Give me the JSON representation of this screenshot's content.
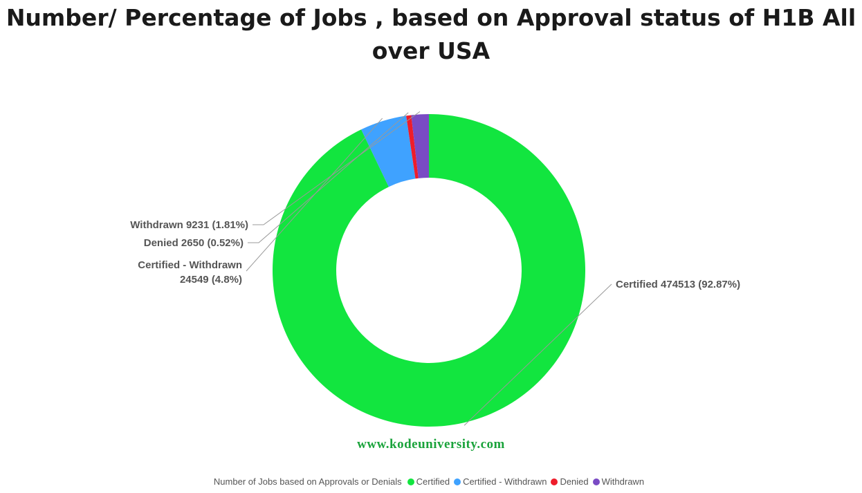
{
  "chart_data": {
    "type": "pie",
    "variant": "donut",
    "title": "Number/ Percentage of Jobs , based on Approval status of H1B All over USA",
    "slices": [
      {
        "name": "Certified",
        "value": 474513,
        "percent": "92.87%",
        "label": "Certified 474513 (92.87%)",
        "color": "#12e53f"
      },
      {
        "name": "Certified - Withdrawn",
        "value": 24549,
        "percent": "4.8%",
        "label": "Certified - Withdrawn 24549 (4.8%)",
        "label_lines": [
          "Certified - Withdrawn",
          "24549 (4.8%)"
        ],
        "color": "#3fa2ff"
      },
      {
        "name": "Denied",
        "value": 2650,
        "percent": "0.52%",
        "label": "Denied 2650 (0.52%)",
        "color": "#ee1d2b"
      },
      {
        "name": "Withdrawn",
        "value": 9231,
        "percent": "1.81%",
        "label": "Withdrawn 9231 (1.81%)",
        "color": "#7a4bc4"
      }
    ],
    "legend": {
      "title": "Number of Jobs based on Approvals or Denials",
      "placement": "bottom-center",
      "items": [
        "Certified",
        "Certified - Withdrawn",
        "Denied",
        "Withdrawn"
      ]
    }
  },
  "watermark": "www.kodeuniversity.com"
}
